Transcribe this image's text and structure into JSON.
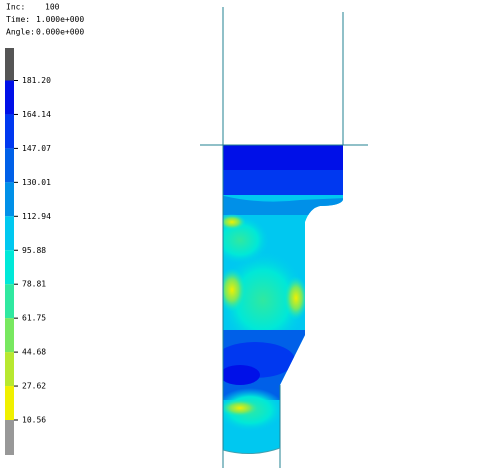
{
  "header": {
    "rows": [
      [
        "Inc:",
        "100"
      ],
      [
        "Time:",
        "1.000e+000"
      ],
      [
        "Angle:",
        "0.000e+000"
      ]
    ]
  },
  "legend": {
    "labels": [
      "181.20",
      "164.14",
      "147.07",
      "130.01",
      "112.94",
      "95.88",
      "78.81",
      "61.75",
      "44.68",
      "27.62",
      "10.56"
    ],
    "colors": [
      "#555555",
      "#0010e8",
      "#0038f0",
      "#0060e8",
      "#0090e8",
      "#00c8f0",
      "#00e8d8",
      "#30e8a0",
      "#78e860",
      "#b8e830",
      "#f0f000",
      "#989898"
    ]
  }
}
